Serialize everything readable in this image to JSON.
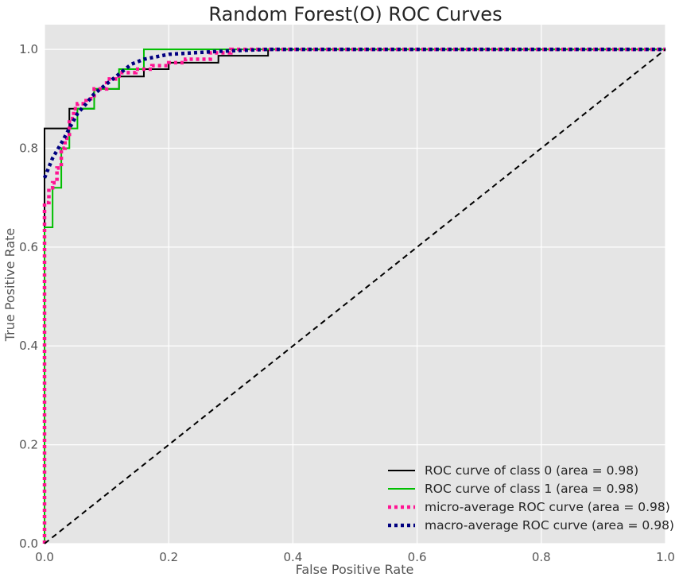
{
  "chart_data": {
    "type": "line",
    "title": "Random Forest(O) ROC Curves",
    "xlabel": "False Positive Rate",
    "ylabel": "True Positive Rate",
    "xlim": [
      0.0,
      1.0
    ],
    "ylim": [
      0.0,
      1.05
    ],
    "xticks": [
      "0.0",
      "0.2",
      "0.4",
      "0.6",
      "0.8",
      "1.0"
    ],
    "yticks": [
      "0.0",
      "0.2",
      "0.4",
      "0.6",
      "0.8",
      "1.0"
    ],
    "grid": true,
    "background": "#E5E5E5",
    "legend_position": "lower-right",
    "series": [
      {
        "name": "ROC curve of class 0 (area = 0.98)",
        "color": "#000000",
        "style": "solid",
        "x": [
          0.0,
          0.0,
          0.04,
          0.04,
          0.05,
          0.05,
          0.08,
          0.08,
          0.12,
          0.12,
          0.16,
          0.16,
          0.2,
          0.2,
          0.28,
          0.28,
          0.36,
          0.36,
          1.0
        ],
        "y": [
          0.0,
          0.84,
          0.84,
          0.88,
          0.88,
          0.88,
          0.88,
          0.92,
          0.92,
          0.945,
          0.945,
          0.96,
          0.96,
          0.973,
          0.973,
          0.987,
          0.987,
          1.0,
          1.0
        ]
      },
      {
        "name": "ROC curve of class 1 (area = 0.98)",
        "color": "#00BF00",
        "style": "solid",
        "x": [
          0.0,
          0.0,
          0.013,
          0.013,
          0.027,
          0.027,
          0.04,
          0.04,
          0.053,
          0.053,
          0.08,
          0.08,
          0.12,
          0.12,
          0.16,
          0.16,
          1.0
        ],
        "y": [
          0.0,
          0.64,
          0.64,
          0.72,
          0.72,
          0.8,
          0.8,
          0.84,
          0.84,
          0.88,
          0.88,
          0.92,
          0.92,
          0.96,
          0.96,
          1.0,
          1.0
        ]
      },
      {
        "name": "micro-average ROC curve (area = 0.98)",
        "color": "#FF1493",
        "style": "dotted",
        "x": [
          0.0,
          0.0,
          0.007,
          0.007,
          0.013,
          0.013,
          0.02,
          0.02,
          0.027,
          0.027,
          0.033,
          0.033,
          0.04,
          0.04,
          0.047,
          0.047,
          0.053,
          0.053,
          0.067,
          0.067,
          0.08,
          0.08,
          0.1,
          0.1,
          0.12,
          0.12,
          0.147,
          0.147,
          0.173,
          0.173,
          0.2,
          0.2,
          0.227,
          0.227,
          0.267,
          0.267,
          0.3,
          0.3,
          1.0
        ],
        "y": [
          0.0,
          0.69,
          0.69,
          0.72,
          0.72,
          0.73,
          0.73,
          0.76,
          0.76,
          0.8,
          0.8,
          0.82,
          0.82,
          0.86,
          0.86,
          0.88,
          0.88,
          0.89,
          0.89,
          0.9,
          0.9,
          0.92,
          0.92,
          0.94,
          0.94,
          0.953,
          0.953,
          0.96,
          0.96,
          0.967,
          0.967,
          0.973,
          0.973,
          0.98,
          0.98,
          0.993,
          0.993,
          1.0,
          1.0
        ]
      },
      {
        "name": "macro-average ROC curve (area = 0.98)",
        "color": "#000080",
        "style": "dotted",
        "x": [
          0.0,
          0.013,
          0.027,
          0.04,
          0.053,
          0.067,
          0.08,
          0.1,
          0.12,
          0.14,
          0.16,
          0.18,
          0.2,
          0.24,
          0.28,
          0.32,
          0.36,
          1.0
        ],
        "y": [
          0.74,
          0.78,
          0.81,
          0.84,
          0.87,
          0.89,
          0.91,
          0.93,
          0.95,
          0.97,
          0.98,
          0.985,
          0.99,
          0.993,
          0.996,
          0.998,
          1.0,
          1.0
        ]
      },
      {
        "name": "",
        "color": "#000000",
        "style": "dashed",
        "x": [
          0.0,
          1.0
        ],
        "y": [
          0.0,
          1.0
        ]
      }
    ]
  }
}
